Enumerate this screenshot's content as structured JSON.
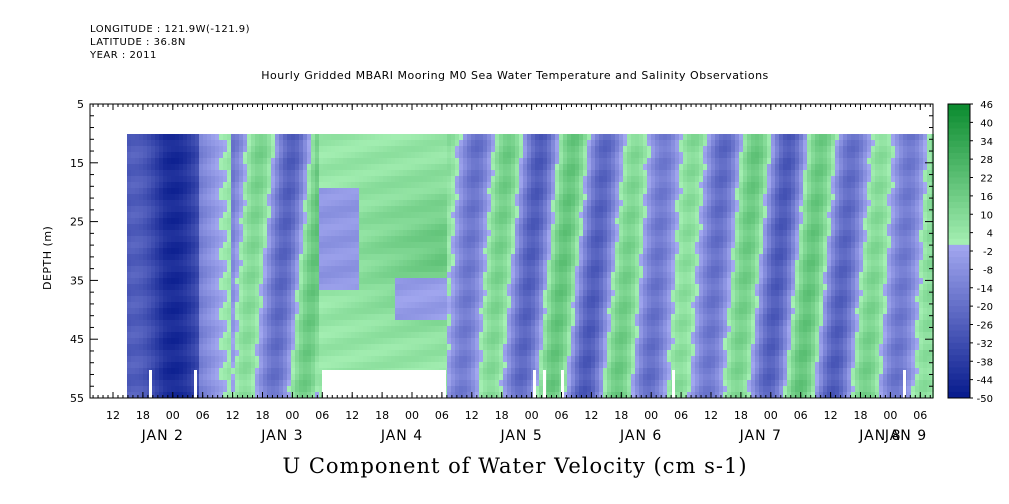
{
  "header": {
    "longitude": "LONGITUDE : 121.9W(-121.9)",
    "latitude": "LATITUDE : 36.8N",
    "year": "YEAR : 2011"
  },
  "chart_data": {
    "type": "heatmap",
    "title": "Hourly Gridded MBARI Mooring M0 Sea Water Temperature and Salinity Observations",
    "xlabel": "U Component of Water Velocity (cm s-1)",
    "ylabel": "DEPTH (m)",
    "ylim": [
      55,
      5
    ],
    "yticks": [
      5,
      15,
      25,
      35,
      45,
      55
    ],
    "x_hour_ticks": [
      "12",
      "18",
      "00",
      "06",
      "12",
      "18",
      "00",
      "06",
      "12",
      "18",
      "00",
      "06",
      "12",
      "18",
      "00",
      "06",
      "12",
      "18",
      "00",
      "06",
      "12",
      "18",
      "00",
      "06",
      "12",
      "18",
      "00",
      "06"
    ],
    "x_day_labels": [
      "JAN  2",
      "JAN  3",
      "JAN  4",
      "JAN  5",
      "JAN  6",
      "JAN  7",
      "JAN  8",
      "JAN  9"
    ],
    "colorbar_labels": [
      "46",
      "40",
      "34",
      "28",
      "22",
      "16",
      "10",
      "4",
      "-2",
      "-8",
      "-14",
      "-20",
      "-26",
      "-32",
      "-38",
      "-44",
      "-50"
    ],
    "data_depth_range": [
      10,
      55
    ],
    "value_range": [
      -50,
      46
    ]
  },
  "colors": {
    "strong_negative": "#061a8c",
    "weak_negative": "#a3a8f0",
    "weak_positive": "#a6f0b4",
    "strong_positive": "#0a8a2e"
  }
}
